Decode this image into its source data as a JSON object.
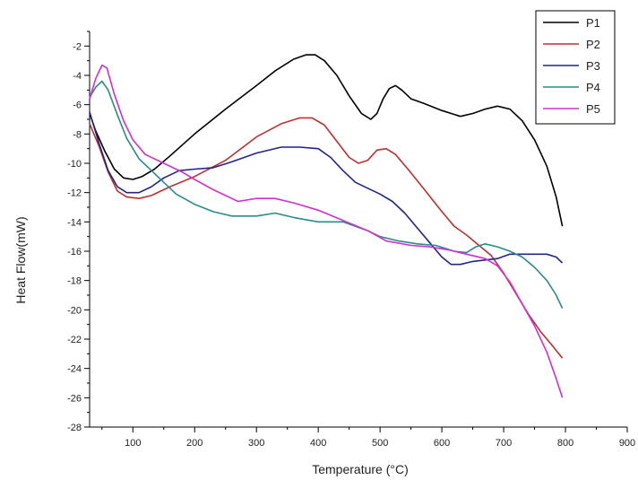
{
  "chart_data": {
    "type": "line",
    "title": "",
    "xlabel": "Temperature (°C)",
    "ylabel": "Heat Flow(mW)",
    "xlim": [
      30,
      900
    ],
    "ylim": [
      -28,
      -1
    ],
    "x_ticks": [
      100,
      200,
      300,
      400,
      500,
      600,
      700,
      800,
      900
    ],
    "y_ticks": [
      -2,
      -4,
      -6,
      -8,
      -10,
      -12,
      -14,
      -16,
      -18,
      -20,
      -22,
      -24,
      -26,
      -28
    ],
    "grid": false,
    "legend_position": "top-right",
    "series": [
      {
        "name": "P1",
        "color": "#000000",
        "points": [
          [
            30,
            -6.6
          ],
          [
            40,
            -7.8
          ],
          [
            55,
            -9.2
          ],
          [
            70,
            -10.4
          ],
          [
            85,
            -11.0
          ],
          [
            100,
            -11.1
          ],
          [
            115,
            -10.9
          ],
          [
            135,
            -10.4
          ],
          [
            160,
            -9.5
          ],
          [
            200,
            -8.0
          ],
          [
            250,
            -6.3
          ],
          [
            300,
            -4.7
          ],
          [
            330,
            -3.7
          ],
          [
            360,
            -2.9
          ],
          [
            380,
            -2.6
          ],
          [
            395,
            -2.6
          ],
          [
            410,
            -3.0
          ],
          [
            430,
            -4.0
          ],
          [
            450,
            -5.4
          ],
          [
            470,
            -6.6
          ],
          [
            485,
            -7.0
          ],
          [
            495,
            -6.6
          ],
          [
            505,
            -5.6
          ],
          [
            515,
            -4.9
          ],
          [
            525,
            -4.7
          ],
          [
            535,
            -5.0
          ],
          [
            550,
            -5.6
          ],
          [
            570,
            -5.9
          ],
          [
            600,
            -6.4
          ],
          [
            630,
            -6.8
          ],
          [
            650,
            -6.6
          ],
          [
            670,
            -6.3
          ],
          [
            690,
            -6.1
          ],
          [
            710,
            -6.3
          ],
          [
            730,
            -7.1
          ],
          [
            750,
            -8.4
          ],
          [
            770,
            -10.2
          ],
          [
            785,
            -12.3
          ],
          [
            795,
            -14.3
          ]
        ]
      },
      {
        "name": "P2",
        "color": "#c03030",
        "points": [
          [
            30,
            -7.3
          ],
          [
            45,
            -8.8
          ],
          [
            60,
            -10.6
          ],
          [
            75,
            -11.9
          ],
          [
            90,
            -12.3
          ],
          [
            110,
            -12.4
          ],
          [
            130,
            -12.2
          ],
          [
            160,
            -11.6
          ],
          [
            200,
            -10.9
          ],
          [
            250,
            -9.8
          ],
          [
            300,
            -8.2
          ],
          [
            340,
            -7.3
          ],
          [
            370,
            -6.9
          ],
          [
            390,
            -6.9
          ],
          [
            410,
            -7.4
          ],
          [
            430,
            -8.5
          ],
          [
            450,
            -9.6
          ],
          [
            465,
            -10.0
          ],
          [
            480,
            -9.8
          ],
          [
            495,
            -9.1
          ],
          [
            510,
            -9.0
          ],
          [
            525,
            -9.4
          ],
          [
            545,
            -10.4
          ],
          [
            570,
            -11.7
          ],
          [
            600,
            -13.3
          ],
          [
            620,
            -14.3
          ],
          [
            640,
            -14.9
          ],
          [
            660,
            -15.6
          ],
          [
            680,
            -16.3
          ],
          [
            700,
            -17.5
          ],
          [
            720,
            -18.9
          ],
          [
            740,
            -20.3
          ],
          [
            760,
            -21.5
          ],
          [
            780,
            -22.5
          ],
          [
            795,
            -23.3
          ]
        ]
      },
      {
        "name": "P3",
        "color": "#22248a",
        "points": [
          [
            30,
            -6.5
          ],
          [
            45,
            -8.6
          ],
          [
            60,
            -10.5
          ],
          [
            75,
            -11.6
          ],
          [
            90,
            -12.0
          ],
          [
            110,
            -12.0
          ],
          [
            130,
            -11.6
          ],
          [
            150,
            -11.0
          ],
          [
            175,
            -10.5
          ],
          [
            200,
            -10.4
          ],
          [
            230,
            -10.3
          ],
          [
            260,
            -9.9
          ],
          [
            300,
            -9.3
          ],
          [
            340,
            -8.9
          ],
          [
            370,
            -8.9
          ],
          [
            400,
            -9.0
          ],
          [
            420,
            -9.6
          ],
          [
            440,
            -10.5
          ],
          [
            460,
            -11.3
          ],
          [
            480,
            -11.7
          ],
          [
            500,
            -12.1
          ],
          [
            520,
            -12.6
          ],
          [
            540,
            -13.4
          ],
          [
            560,
            -14.4
          ],
          [
            580,
            -15.4
          ],
          [
            600,
            -16.4
          ],
          [
            615,
            -16.9
          ],
          [
            630,
            -16.9
          ],
          [
            650,
            -16.7
          ],
          [
            670,
            -16.6
          ],
          [
            690,
            -16.5
          ],
          [
            710,
            -16.2
          ],
          [
            730,
            -16.2
          ],
          [
            750,
            -16.2
          ],
          [
            770,
            -16.2
          ],
          [
            785,
            -16.4
          ],
          [
            795,
            -16.8
          ]
        ]
      },
      {
        "name": "P4",
        "color": "#2a8b8b",
        "points": [
          [
            30,
            -5.5
          ],
          [
            40,
            -4.8
          ],
          [
            50,
            -4.4
          ],
          [
            60,
            -5.0
          ],
          [
            75,
            -6.7
          ],
          [
            90,
            -8.3
          ],
          [
            110,
            -9.7
          ],
          [
            140,
            -10.9
          ],
          [
            170,
            -12.1
          ],
          [
            200,
            -12.8
          ],
          [
            230,
            -13.3
          ],
          [
            260,
            -13.6
          ],
          [
            300,
            -13.6
          ],
          [
            330,
            -13.4
          ],
          [
            360,
            -13.7
          ],
          [
            400,
            -14.0
          ],
          [
            440,
            -14.0
          ],
          [
            480,
            -14.6
          ],
          [
            500,
            -15.0
          ],
          [
            530,
            -15.3
          ],
          [
            560,
            -15.5
          ],
          [
            590,
            -15.6
          ],
          [
            620,
            -16.0
          ],
          [
            640,
            -16.1
          ],
          [
            655,
            -15.7
          ],
          [
            670,
            -15.5
          ],
          [
            690,
            -15.7
          ],
          [
            710,
            -16.0
          ],
          [
            730,
            -16.4
          ],
          [
            750,
            -17.1
          ],
          [
            770,
            -18.0
          ],
          [
            785,
            -19.0
          ],
          [
            795,
            -19.9
          ]
        ]
      },
      {
        "name": "P5",
        "color": "#d030d0",
        "points": [
          [
            30,
            -5.6
          ],
          [
            40,
            -4.2
          ],
          [
            50,
            -3.3
          ],
          [
            58,
            -3.5
          ],
          [
            70,
            -5.3
          ],
          [
            85,
            -7.1
          ],
          [
            100,
            -8.4
          ],
          [
            120,
            -9.4
          ],
          [
            150,
            -10.0
          ],
          [
            180,
            -10.6
          ],
          [
            200,
            -11.1
          ],
          [
            230,
            -11.8
          ],
          [
            270,
            -12.6
          ],
          [
            300,
            -12.4
          ],
          [
            330,
            -12.4
          ],
          [
            360,
            -12.7
          ],
          [
            400,
            -13.2
          ],
          [
            440,
            -13.9
          ],
          [
            480,
            -14.6
          ],
          [
            510,
            -15.3
          ],
          [
            550,
            -15.6
          ],
          [
            580,
            -15.7
          ],
          [
            610,
            -15.9
          ],
          [
            640,
            -16.2
          ],
          [
            670,
            -16.5
          ],
          [
            690,
            -17.0
          ],
          [
            710,
            -18.1
          ],
          [
            730,
            -19.6
          ],
          [
            750,
            -21.1
          ],
          [
            770,
            -22.9
          ],
          [
            785,
            -24.7
          ],
          [
            795,
            -26.0
          ]
        ]
      }
    ]
  }
}
